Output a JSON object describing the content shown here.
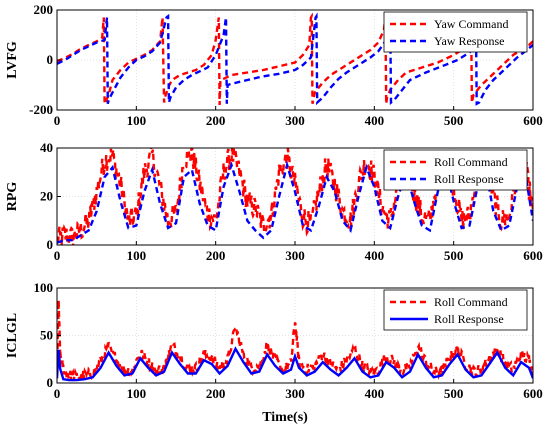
{
  "colors": {
    "command": "#ff0000",
    "response": "#0000ff",
    "axis": "#000000",
    "grid": "#d9d9d9"
  },
  "xlabel": "Time(s)",
  "chart_data": [
    {
      "type": "line",
      "ylabel": "LVFG",
      "xlim": [
        0,
        600
      ],
      "ylim": [
        -200,
        200
      ],
      "xticks": [
        0,
        100,
        200,
        300,
        400,
        500,
        600
      ],
      "yticks": [
        -200,
        0,
        200
      ],
      "grid": true,
      "legend": "top-right",
      "series": [
        {
          "name": "Yaw Command",
          "style": "dashed",
          "color": "#ff0000",
          "x": [
            0,
            10,
            20,
            30,
            40,
            50,
            57,
            59,
            60,
            65,
            70,
            80,
            90,
            100,
            110,
            120,
            130,
            133,
            135,
            136,
            140,
            145,
            155,
            165,
            175,
            185,
            195,
            200,
            204,
            205,
            206,
            210,
            220,
            240,
            260,
            280,
            300,
            310,
            318,
            320,
            321,
            322,
            325,
            335,
            345,
            355,
            365,
            375,
            385,
            395,
            405,
            412,
            414,
            415,
            416,
            420,
            430,
            440,
            460,
            480,
            500,
            515,
            520,
            522,
            523,
            525,
            535,
            545,
            555,
            565,
            575,
            585,
            590,
            595,
            600
          ],
          "y": [
            -5,
            8,
            25,
            45,
            60,
            75,
            90,
            170,
            -175,
            -140,
            -80,
            -40,
            -10,
            5,
            20,
            40,
            75,
            170,
            -170,
            -150,
            -110,
            -80,
            -60,
            -50,
            -40,
            -20,
            20,
            80,
            170,
            -180,
            -80,
            -75,
            -60,
            -50,
            -40,
            -25,
            -10,
            20,
            60,
            170,
            175,
            -175,
            -130,
            -90,
            -60,
            -40,
            -20,
            0,
            20,
            40,
            70,
            120,
            170,
            -175,
            -150,
            -120,
            -80,
            -50,
            -30,
            -10,
            20,
            50,
            120,
            170,
            -170,
            -140,
            -100,
            -70,
            -40,
            -10,
            20,
            40,
            55,
            60,
            75
          ]
        },
        {
          "name": "Yaw Response",
          "style": "dashed",
          "color": "#0000ff",
          "x": [
            0,
            10,
            20,
            30,
            40,
            50,
            60,
            63,
            64,
            65,
            70,
            75,
            80,
            90,
            100,
            110,
            120,
            130,
            138,
            140,
            141,
            143,
            150,
            160,
            170,
            180,
            190,
            200,
            210,
            213,
            214,
            215,
            220,
            240,
            260,
            280,
            300,
            310,
            320,
            326,
            327,
            328,
            335,
            345,
            355,
            365,
            375,
            385,
            395,
            405,
            415,
            419,
            420,
            421,
            425,
            435,
            445,
            465,
            485,
            505,
            520,
            525,
            528,
            529,
            532,
            540,
            550,
            560,
            570,
            580,
            590,
            600
          ],
          "y": [
            -15,
            0,
            20,
            40,
            55,
            70,
            80,
            170,
            -175,
            -160,
            -130,
            -100,
            -70,
            -30,
            0,
            15,
            35,
            70,
            170,
            175,
            -170,
            -150,
            -110,
            -80,
            -60,
            -45,
            -30,
            20,
            100,
            170,
            -175,
            -100,
            -95,
            -80,
            -65,
            -55,
            -40,
            -20,
            10,
            170,
            175,
            -170,
            -150,
            -110,
            -75,
            -50,
            -30,
            -10,
            10,
            35,
            80,
            170,
            175,
            -170,
            -160,
            -120,
            -80,
            -50,
            -25,
            0,
            30,
            60,
            170,
            -175,
            -170,
            -120,
            -80,
            -50,
            -20,
            10,
            35,
            60
          ]
        }
      ]
    },
    {
      "type": "line",
      "ylabel": "RPG",
      "xlim": [
        0,
        600
      ],
      "ylim": [
        0,
        40
      ],
      "xticks": [
        0,
        100,
        200,
        300,
        400,
        500,
        600
      ],
      "yticks": [
        0,
        20,
        40
      ],
      "grid": true,
      "legend": "top-right",
      "series": [
        {
          "name": "Roll Command",
          "style": "dashed",
          "color": "#ff0000",
          "noise": 5,
          "x": [
            0,
            10,
            20,
            30,
            40,
            50,
            60,
            70,
            80,
            90,
            100,
            110,
            120,
            130,
            140,
            150,
            160,
            170,
            180,
            190,
            200,
            210,
            220,
            230,
            240,
            250,
            260,
            270,
            280,
            290,
            300,
            310,
            320,
            330,
            340,
            350,
            360,
            370,
            380,
            390,
            400,
            410,
            420,
            430,
            440,
            450,
            460,
            470,
            480,
            490,
            500,
            510,
            520,
            530,
            540,
            550,
            560,
            570,
            580,
            590,
            600
          ],
          "y": [
            2,
            4,
            3,
            6,
            10,
            22,
            35,
            37,
            25,
            10,
            12,
            30,
            37,
            24,
            10,
            13,
            35,
            38,
            25,
            13,
            10,
            30,
            38,
            30,
            18,
            15,
            8,
            12,
            30,
            36,
            25,
            12,
            8,
            22,
            33,
            25,
            14,
            10,
            26,
            35,
            28,
            15,
            10,
            25,
            33,
            22,
            12,
            10,
            28,
            36,
            24,
            10,
            12,
            30,
            37,
            20,
            10,
            12,
            30,
            33,
            14
          ]
        },
        {
          "name": "Roll Response",
          "style": "dashed",
          "color": "#0000ff",
          "x": [
            0,
            10,
            20,
            30,
            40,
            50,
            60,
            70,
            80,
            90,
            100,
            110,
            120,
            130,
            140,
            150,
            160,
            170,
            180,
            190,
            200,
            210,
            220,
            230,
            240,
            250,
            260,
            270,
            280,
            290,
            300,
            310,
            320,
            330,
            340,
            350,
            360,
            370,
            380,
            390,
            400,
            410,
            420,
            430,
            440,
            450,
            460,
            470,
            480,
            490,
            500,
            510,
            520,
            530,
            540,
            550,
            560,
            570,
            580,
            590,
            600
          ],
          "y": [
            1,
            2,
            2,
            4,
            6,
            14,
            28,
            32,
            18,
            7,
            8,
            22,
            31,
            17,
            7,
            9,
            28,
            31,
            17,
            8,
            6,
            24,
            33,
            22,
            10,
            6,
            3,
            6,
            20,
            33,
            22,
            8,
            6,
            16,
            28,
            22,
            10,
            6,
            20,
            32,
            24,
            10,
            7,
            20,
            30,
            18,
            8,
            6,
            22,
            32,
            18,
            7,
            8,
            24,
            32,
            14,
            6,
            8,
            24,
            30,
            10
          ]
        }
      ]
    },
    {
      "type": "line",
      "ylabel": "ICLGL",
      "xlim": [
        0,
        600
      ],
      "ylim": [
        0,
        100
      ],
      "xticks": [
        0,
        100,
        200,
        300,
        400,
        500,
        600
      ],
      "yticks": [
        0,
        50,
        100
      ],
      "grid": true,
      "legend": "top-right",
      "series": [
        {
          "name": "Roll Command",
          "style": "dashed",
          "color": "#ff0000",
          "noise": 6,
          "x": [
            0,
            2,
            4,
            8,
            15,
            25,
            35,
            45,
            55,
            65,
            75,
            85,
            95,
            105,
            115,
            125,
            135,
            145,
            155,
            165,
            175,
            185,
            195,
            205,
            215,
            225,
            235,
            245,
            255,
            265,
            275,
            285,
            295,
            300,
            305,
            315,
            325,
            335,
            345,
            355,
            365,
            375,
            385,
            395,
            405,
            415,
            425,
            435,
            445,
            455,
            465,
            475,
            485,
            495,
            505,
            515,
            525,
            535,
            545,
            555,
            565,
            575,
            585,
            595,
            600
          ],
          "y": [
            10,
            85,
            30,
            15,
            8,
            6,
            8,
            10,
            22,
            38,
            24,
            12,
            14,
            32,
            22,
            12,
            16,
            40,
            28,
            14,
            15,
            30,
            26,
            16,
            24,
            58,
            30,
            16,
            18,
            40,
            24,
            14,
            20,
            65,
            22,
            14,
            18,
            30,
            20,
            14,
            24,
            36,
            18,
            12,
            14,
            28,
            22,
            12,
            18,
            38,
            22,
            12,
            12,
            26,
            36,
            20,
            12,
            14,
            26,
            36,
            20,
            14,
            30,
            24,
            10
          ]
        },
        {
          "name": "Roll Response",
          "style": "solid",
          "color": "#0000ff",
          "x": [
            0,
            2,
            4,
            8,
            15,
            25,
            35,
            45,
            55,
            65,
            75,
            85,
            95,
            105,
            115,
            125,
            135,
            145,
            155,
            165,
            175,
            185,
            195,
            205,
            215,
            225,
            235,
            245,
            255,
            265,
            275,
            285,
            295,
            300,
            305,
            315,
            325,
            335,
            345,
            355,
            365,
            375,
            385,
            395,
            405,
            415,
            425,
            435,
            445,
            455,
            465,
            475,
            485,
            495,
            505,
            515,
            525,
            535,
            545,
            555,
            565,
            575,
            585,
            595,
            600
          ],
          "y": [
            5,
            35,
            15,
            4,
            3,
            3,
            4,
            6,
            16,
            32,
            18,
            8,
            10,
            26,
            16,
            8,
            12,
            32,
            20,
            10,
            10,
            24,
            20,
            10,
            18,
            36,
            22,
            10,
            12,
            30,
            18,
            10,
            14,
            28,
            16,
            8,
            12,
            22,
            14,
            8,
            16,
            26,
            12,
            6,
            8,
            22,
            16,
            6,
            12,
            30,
            16,
            6,
            8,
            20,
            30,
            14,
            6,
            8,
            20,
            32,
            16,
            8,
            22,
            16,
            5
          ]
        }
      ]
    }
  ]
}
